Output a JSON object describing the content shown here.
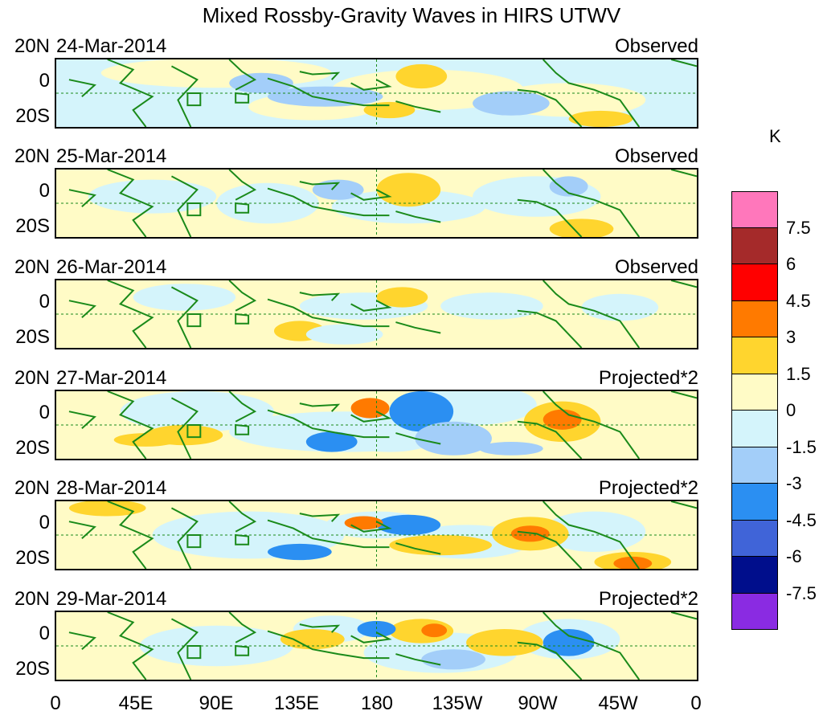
{
  "title": "Mixed Rossby-Gravity Waves in HIRS UTWV",
  "lat_labels": [
    "20N",
    "0",
    "20S"
  ],
  "lon_labels": [
    "0",
    "45E",
    "90E",
    "135E",
    "180",
    "135W",
    "90W",
    "45W",
    "0"
  ],
  "panels": [
    {
      "date": "24-Mar-2014",
      "tag": "Observed"
    },
    {
      "date": "25-Mar-2014",
      "tag": "Observed"
    },
    {
      "date": "26-Mar-2014",
      "tag": "Observed"
    },
    {
      "date": "27-Mar-2014",
      "tag": "Projected*2"
    },
    {
      "date": "28-Mar-2014",
      "tag": "Projected*2"
    },
    {
      "date": "29-Mar-2014",
      "tag": "Projected*2"
    }
  ],
  "colorbar": {
    "unit": "K",
    "labels": [
      "7.5",
      "6",
      "4.5",
      "3",
      "1.5",
      "0",
      "-1.5",
      "-3",
      "-4.5",
      "-6",
      "-7.5"
    ],
    "colors": [
      "#ff77bb",
      "#a52a2a",
      "#ff0000",
      "#ff7a00",
      "#ffd52e",
      "#fffbc6",
      "#d4f4fb",
      "#a3cef9",
      "#2b8ff2",
      "#4064d8",
      "#000e8c",
      "#8a2be2"
    ]
  },
  "colors": {
    "coast": "#1a8a1a",
    "grid": "#1a8a1a"
  }
}
